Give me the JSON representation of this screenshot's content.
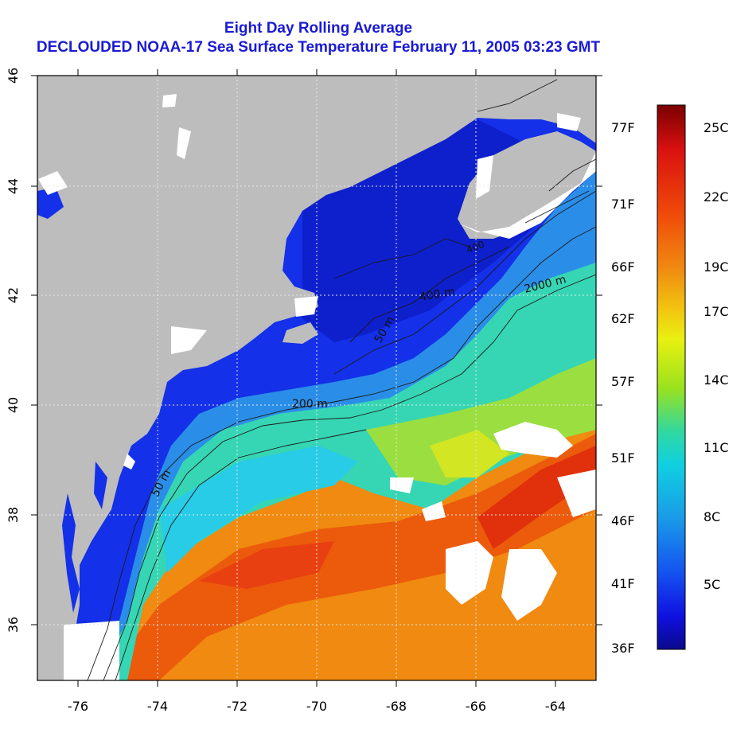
{
  "title": {
    "line1": "Eight Day Rolling Average",
    "line2": "DECLOUDED NOAA-17 Sea Surface Temperature February 11, 2005 03:23 GMT"
  },
  "map": {
    "lon_ticks": [
      "-76",
      "-74",
      "-72",
      "-70",
      "-68",
      "-66",
      "-64"
    ],
    "lat_ticks": [
      "46",
      "44",
      "42",
      "40",
      "38",
      "36"
    ],
    "contour_labels": [
      "2000 m",
      "200 m",
      "400 m",
      "50 m",
      "50 m",
      "400"
    ],
    "colors": {
      "land": "#bdbdbd",
      "cloud": "#ffffff"
    }
  },
  "colorbar": {
    "fahrenheit": [
      "77F",
      "71F",
      "66F",
      "62F",
      "57F",
      "51F",
      "46F",
      "41F",
      "36F"
    ],
    "celsius": [
      "25C",
      "22C",
      "19C",
      "17C",
      "14C",
      "11C",
      "8C",
      "5C"
    ],
    "gradient": [
      "#7a0000",
      "#d81010",
      "#f04a0a",
      "#f08a10",
      "#f2c810",
      "#e8f010",
      "#9ae21e",
      "#30d8a0",
      "#10d0e0",
      "#1a9ae8",
      "#1452f0",
      "#1010e0",
      "#0a0a8c"
    ]
  }
}
